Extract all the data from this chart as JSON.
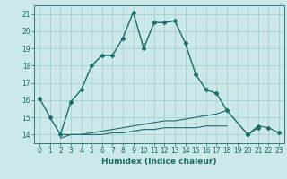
{
  "xlabel": "Humidex (Indice chaleur)",
  "ylabel": "",
  "bg_color": "#cce8e8",
  "line_color": "#1a6b6b",
  "grid_color": "#9ecece",
  "xlim": [
    -0.5,
    23.5
  ],
  "ylim": [
    13.5,
    21.5
  ],
  "yticks": [
    14,
    15,
    16,
    17,
    18,
    19,
    20,
    21
  ],
  "xticks": [
    0,
    1,
    2,
    3,
    4,
    5,
    6,
    7,
    8,
    9,
    10,
    11,
    12,
    13,
    14,
    15,
    16,
    17,
    18,
    19,
    20,
    21,
    22,
    23
  ],
  "series": [
    {
      "x": [
        0,
        1,
        2,
        3,
        4,
        5,
        6,
        7,
        8,
        9,
        10,
        11,
        12,
        13,
        14,
        15,
        16,
        17,
        18,
        20,
        21
      ],
      "y": [
        16.1,
        15.0,
        14.0,
        15.9,
        16.6,
        18.0,
        18.6,
        18.6,
        19.6,
        21.1,
        19.0,
        20.5,
        20.5,
        20.6,
        19.3,
        17.5,
        16.6,
        16.4,
        15.4,
        14.0,
        14.4
      ],
      "marker": "D",
      "markersize": 2.5,
      "linewidth": 1.0
    },
    {
      "x": [
        2,
        3,
        4,
        5,
        6,
        7,
        8,
        9,
        10,
        11,
        12,
        13,
        14,
        15,
        16,
        17,
        18
      ],
      "y": [
        14.0,
        14.0,
        14.0,
        14.1,
        14.2,
        14.3,
        14.4,
        14.5,
        14.6,
        14.7,
        14.8,
        14.8,
        14.9,
        15.0,
        15.1,
        15.2,
        15.4
      ],
      "marker": null,
      "markersize": 0,
      "linewidth": 0.8
    },
    {
      "x": [
        2,
        3,
        4,
        5,
        6,
        7,
        8,
        9,
        10,
        11,
        12,
        13,
        14,
        15,
        16,
        17,
        18
      ],
      "y": [
        13.8,
        14.0,
        14.0,
        14.0,
        14.0,
        14.1,
        14.1,
        14.2,
        14.3,
        14.3,
        14.4,
        14.4,
        14.4,
        14.4,
        14.5,
        14.5,
        14.5
      ],
      "marker": null,
      "markersize": 0,
      "linewidth": 0.8
    },
    {
      "x": [
        20,
        21,
        22,
        23
      ],
      "y": [
        14.0,
        14.5,
        14.4,
        14.1
      ],
      "marker": "D",
      "markersize": 2.5,
      "linewidth": 0.8
    }
  ]
}
